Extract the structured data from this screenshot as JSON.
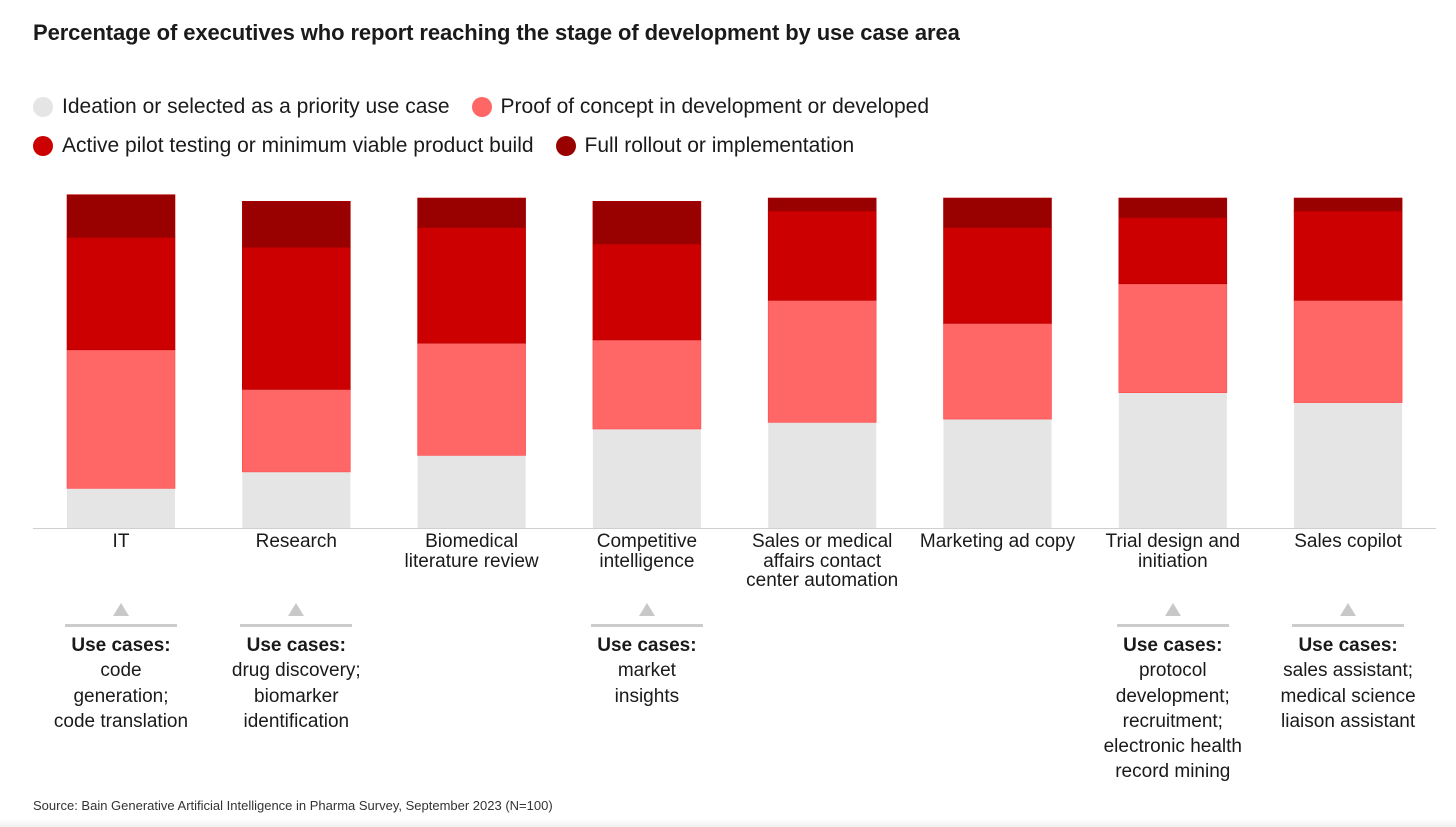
{
  "title": "Percentage of executives who report reaching the stage of development by use case area",
  "legend": [
    {
      "label": "Ideation or selected as a priority use case",
      "color": "#e5e5e5",
      "icon": "circle"
    },
    {
      "label": "Proof of concept in development or developed",
      "color": "#ff6666",
      "icon": "circle"
    },
    {
      "label": "Active pilot testing or minimum viable product build",
      "color": "#cc0000",
      "icon": "circle"
    },
    {
      "label": "Full rollout or implementation",
      "color": "#990000",
      "icon": "circle"
    }
  ],
  "chart_data": {
    "type": "bar",
    "stacked": true,
    "categories": [
      "IT",
      "Research",
      "Biomedical literature review",
      "Competitive intelligence",
      "Sales or medical affairs contact center automation",
      "Marketing ad copy",
      "Trial design and initiation",
      "Sales copilot"
    ],
    "series": [
      {
        "name": "Ideation or selected as a priority use case",
        "color": "#e5e5e5",
        "values": [
          12,
          17,
          22,
          30,
          32,
          33,
          41,
          38
        ]
      },
      {
        "name": "Proof of concept in development or developed",
        "color": "#ff6666",
        "values": [
          42,
          25,
          34,
          27,
          37,
          29,
          33,
          31
        ]
      },
      {
        "name": "Active pilot testing or minimum viable product build",
        "color": "#cc0000",
        "values": [
          34,
          43,
          35,
          29,
          27,
          29,
          20,
          27
        ]
      },
      {
        "name": "Full rollout or implementation",
        "color": "#990000",
        "values": [
          13,
          14,
          9,
          13,
          4,
          9,
          6,
          4
        ]
      }
    ],
    "ylim": [
      0,
      100
    ],
    "grid": false,
    "legend_position": "top-left",
    "xlabel": "",
    "ylabel": ""
  },
  "use_case_notes": [
    {
      "category_index": 0,
      "heading": "Use cases:",
      "lines": [
        "code",
        "generation;",
        "code translation"
      ]
    },
    {
      "category_index": 1,
      "heading": "Use cases:",
      "lines": [
        "drug discovery;",
        "biomarker",
        "identification"
      ]
    },
    {
      "category_index": 3,
      "heading": "Use cases:",
      "lines": [
        "market",
        "insights"
      ]
    },
    {
      "category_index": 6,
      "heading": "Use cases:",
      "lines": [
        "protocol",
        "development;",
        "recruitment;",
        "electronic health",
        "record mining"
      ]
    },
    {
      "category_index": 7,
      "heading": "Use cases:",
      "lines": [
        "sales assistant;",
        "medical science",
        "liaison assistant"
      ]
    }
  ],
  "category_label_lines": [
    [
      "IT"
    ],
    [
      "Research"
    ],
    [
      "Biomedical",
      "literature review"
    ],
    [
      "Competitive",
      "intelligence"
    ],
    [
      "Sales or medical",
      "affairs contact",
      "center automation"
    ],
    [
      "Marketing ad copy"
    ],
    [
      "Trial design and",
      "initiation"
    ],
    [
      "Sales copilot"
    ]
  ],
  "source": "Source: Bain Generative Artificial Intelligence in Pharma Survey, September 2023 (N=100)"
}
